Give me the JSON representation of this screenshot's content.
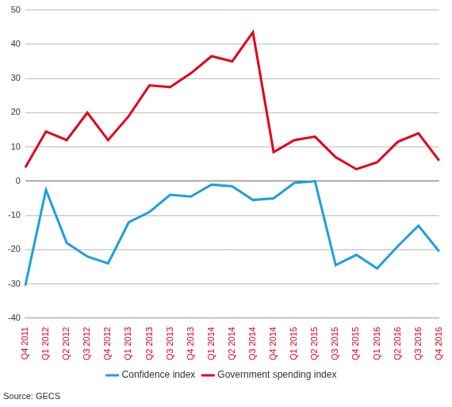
{
  "chart_data": {
    "type": "line",
    "categories": [
      "Q4 2011",
      "Q1 2012",
      "Q2 2012",
      "Q3 2012",
      "Q4 2012",
      "Q1 2013",
      "Q2 2013",
      "Q3 2013",
      "Q4 2013",
      "Q1 2014",
      "Q2 2014",
      "Q3 2014",
      "Q4 2014",
      "Q1 2015",
      "Q2 2015",
      "Q3 2015",
      "Q4 2015",
      "Q1 2016",
      "Q2 2016",
      "Q3 2016",
      "Q4 2016"
    ],
    "series": [
      {
        "name": "Confidence index",
        "color": "#1ba1dc",
        "values": [
          -30.5,
          -2.5,
          -18,
          -22,
          -24,
          -12,
          -9,
          -4,
          -4.5,
          -1,
          -1.5,
          -5.5,
          -5,
          -0.5,
          0,
          -24.5,
          -21.5,
          -25.5,
          -19,
          -13,
          -20.5
        ]
      },
      {
        "name": "Government spending index",
        "color": "#e2001a",
        "values": [
          4,
          14.5,
          12,
          20,
          12,
          19,
          28,
          27.5,
          31.5,
          36.5,
          35,
          43.5,
          8.5,
          12,
          13,
          7,
          3.5,
          5.5,
          11.5,
          14,
          6
        ]
      }
    ],
    "ylim": [
      -40,
      50
    ],
    "yticks": [
      -40,
      -30,
      -20,
      -10,
      0,
      10,
      20,
      30,
      40,
      50
    ],
    "grid": true,
    "legend": "bottom",
    "source": "Source: GECS"
  }
}
